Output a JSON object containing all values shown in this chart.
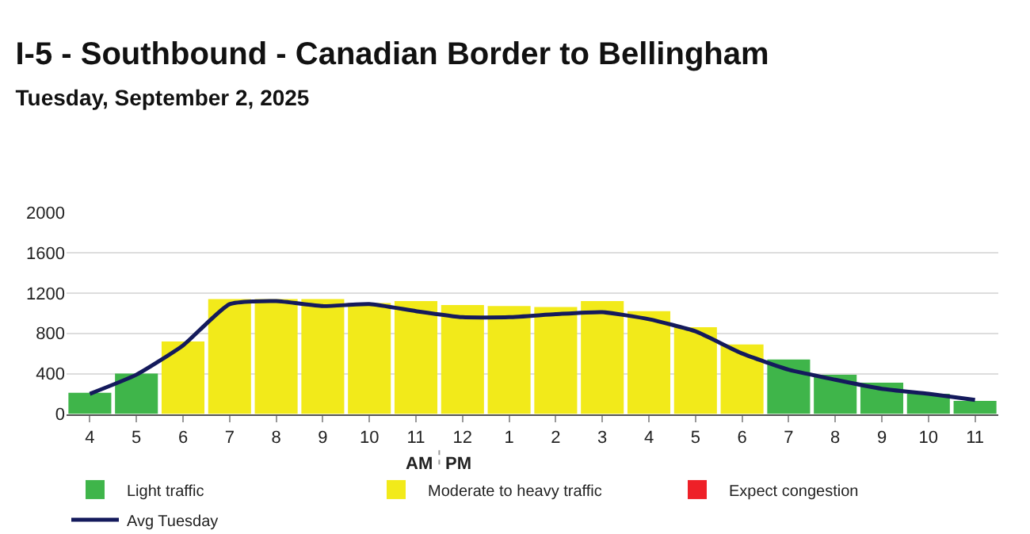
{
  "chart_data": {
    "type": "bar",
    "title": "I-5 - Southbound - Canadian Border to Bellingham",
    "subtitle": "Tuesday, September 2, 2025",
    "categories": [
      "4",
      "5",
      "6",
      "7",
      "8",
      "9",
      "10",
      "11",
      "12",
      "1",
      "2",
      "3",
      "4",
      "5",
      "6",
      "7",
      "8",
      "9",
      "10",
      "11"
    ],
    "series": [
      {
        "name": "Light traffic",
        "color": "#3fb54a",
        "values": [
          210,
          400,
          null,
          null,
          null,
          null,
          null,
          null,
          null,
          null,
          null,
          null,
          null,
          null,
          null,
          540,
          390,
          310,
          200,
          130
        ]
      },
      {
        "name": "Moderate to heavy traffic",
        "color": "#f2ea1a",
        "values": [
          null,
          null,
          720,
          1140,
          1140,
          1140,
          1100,
          1120,
          1080,
          1070,
          1060,
          1120,
          1020,
          860,
          690,
          null,
          null,
          null,
          null,
          null
        ]
      },
      {
        "name": "Expect congestion",
        "color": "#ee2028",
        "values": [
          null,
          null,
          null,
          null,
          null,
          null,
          null,
          null,
          null,
          null,
          null,
          null,
          null,
          null,
          null,
          null,
          null,
          null,
          null,
          null
        ]
      },
      {
        "name": "Avg Tuesday",
        "color": "#141a5c",
        "type": "line",
        "values": [
          200,
          390,
          680,
          1090,
          1120,
          1070,
          1090,
          1020,
          960,
          960,
          990,
          1010,
          940,
          820,
          600,
          440,
          340,
          250,
          200,
          140
        ]
      }
    ],
    "ylim": [
      0,
      2000
    ],
    "yticks": [
      0,
      400,
      800,
      1200,
      1600,
      2000
    ],
    "grid": "y",
    "legend": "bottom",
    "marker": "none",
    "line_style": "solid",
    "annotations": [
      "AM",
      "PM"
    ]
  }
}
